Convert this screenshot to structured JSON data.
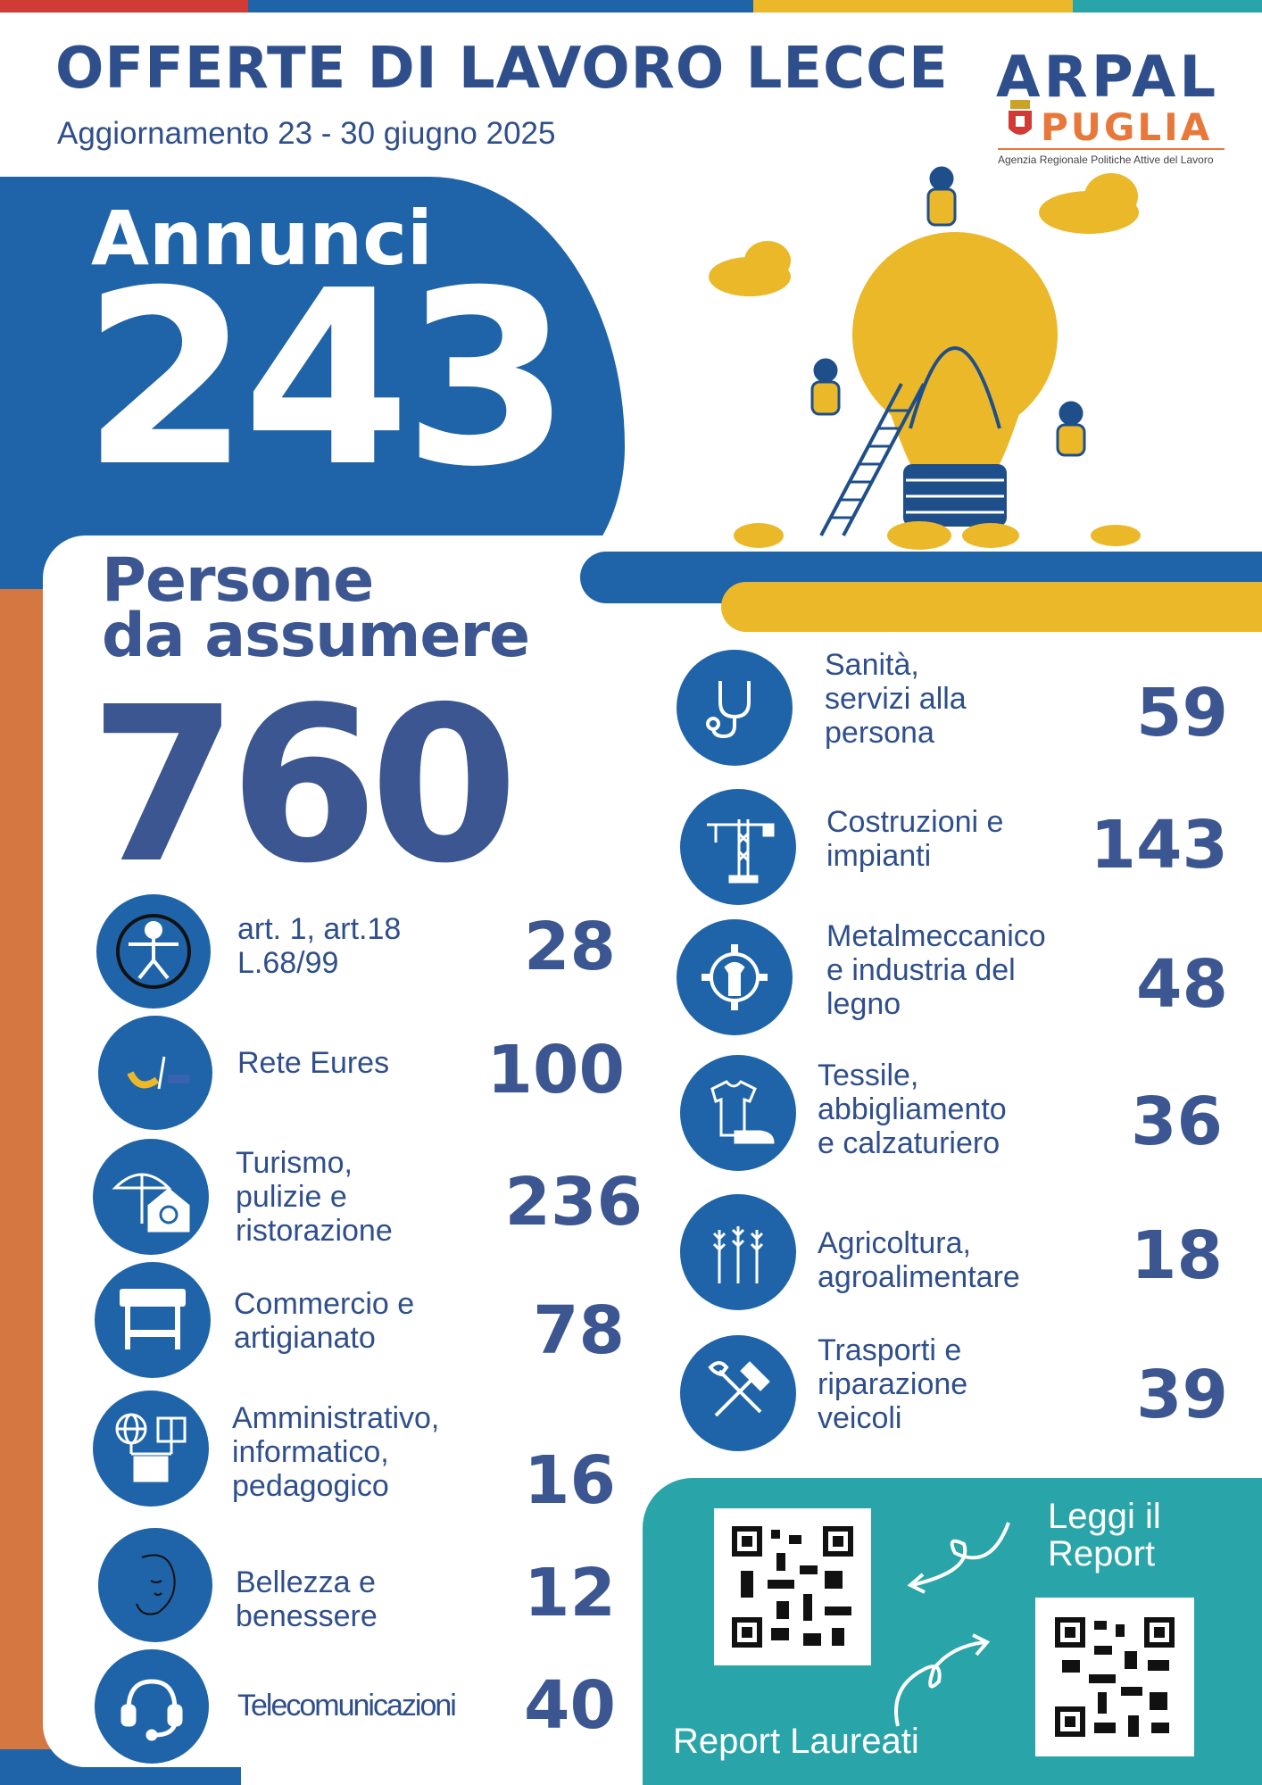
{
  "header": {
    "title": "OFFERTE DI LAVORO LECCE",
    "subtitle": "Aggiornamento  23 - 30 giugno 2025"
  },
  "logo": {
    "arpal": "ARPAL",
    "puglia": "PUGLIA",
    "agency": "Agenzia Regionale Politiche Attive del Lavoro"
  },
  "annunci": {
    "label": "Annunci",
    "value": "243"
  },
  "persone": {
    "label_line1": "Persone",
    "label_line2": "da assumere",
    "value": "760"
  },
  "left_categories": [
    {
      "icon": "accessibility-icon",
      "label": "art. 1, art.18\nL.68/99",
      "value": "28"
    },
    {
      "icon": "eures-logo-icon",
      "label": "Rete Eures",
      "value": "100"
    },
    {
      "icon": "tourism-umbrella-house-icon",
      "label": "Turismo,\npulizie e\nristorazione",
      "value": "236"
    },
    {
      "icon": "market-stall-icon",
      "label": "Commercio e\nartigianato",
      "value": "78"
    },
    {
      "icon": "globe-book-network-icon",
      "label": "Amministrativo,\ninformatico,\npedagogico",
      "value": "16"
    },
    {
      "icon": "woman-face-icon",
      "label": "Bellezza e\nbenessere",
      "value": "12"
    },
    {
      "icon": "headset-icon",
      "label": "Telecomunicazioni",
      "value": "40"
    }
  ],
  "right_categories": [
    {
      "icon": "stethoscope-icon",
      "label": "Sanità,\nservizi alla\npersona",
      "value": "59"
    },
    {
      "icon": "crane-icon",
      "label": "Costruzioni e\nimpianti",
      "value": "143"
    },
    {
      "icon": "gear-wrench-icon",
      "label": "Metalmeccanico\ne industria del\nlegno",
      "value": "48"
    },
    {
      "icon": "shirt-shoe-icon",
      "label": "Tessile,\nabbigliamento\ne calzaturiero",
      "value": "36"
    },
    {
      "icon": "wheat-icon",
      "label": "Agricoltura,\nagroalimentare",
      "value": "18"
    },
    {
      "icon": "hammer-wrench-icon",
      "label": "Trasporti e\nriparazione\nveicoli",
      "value": "39"
    }
  ],
  "report": {
    "read_label": "Leggi il\nReport",
    "graduates_label": "Report Laureati"
  },
  "colors": {
    "navy": "#2f4f8c",
    "blue": "#1f64a8",
    "yellow": "#ebb829",
    "orange": "#d57740",
    "teal": "#29a4a8",
    "red": "#d03b35"
  }
}
